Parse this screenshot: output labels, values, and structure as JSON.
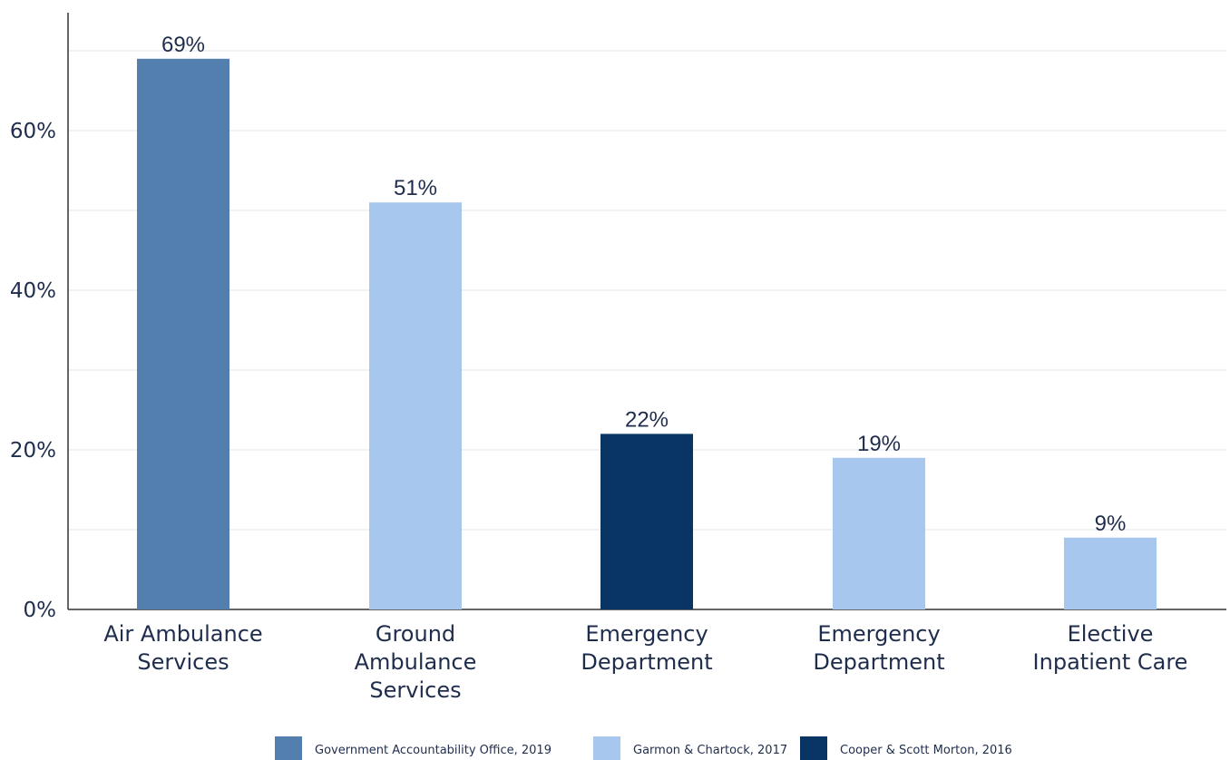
{
  "chart_data": {
    "type": "bar",
    "title": "",
    "xlabel": "",
    "ylabel": "",
    "ylim": [
      0,
      75
    ],
    "yticks": [
      0,
      20,
      40,
      60
    ],
    "ytick_labels": [
      "0%",
      "20%",
      "40%",
      "60%"
    ],
    "grid": true,
    "legend_position": "bottom",
    "categories": [
      "Air Ambulance Services",
      "Ground Ambulance Services",
      "Emergency Department",
      "Emergency Department",
      "Elective Inpatient Care"
    ],
    "category_lines": [
      [
        "Air Ambulance",
        "Services"
      ],
      [
        "Ground",
        "Ambulance",
        "Services"
      ],
      [
        "Emergency",
        "Department"
      ],
      [
        "Emergency",
        "Department"
      ],
      [
        "Elective",
        "Inpatient Care"
      ]
    ],
    "values": [
      69,
      51,
      22,
      19,
      9
    ],
    "data_labels": [
      "69%",
      "51%",
      "22%",
      "19%",
      "9%"
    ],
    "bar_source_index": [
      0,
      1,
      2,
      1,
      1
    ],
    "legend": [
      {
        "name": "Government Accountability Office, 2019",
        "color": "#527fad"
      },
      {
        "name": "Garmon & Chartock, 2017",
        "color": "#a8c7ee"
      },
      {
        "name": "Cooper & Scott Morton, 2016",
        "color": "#083563"
      }
    ]
  }
}
